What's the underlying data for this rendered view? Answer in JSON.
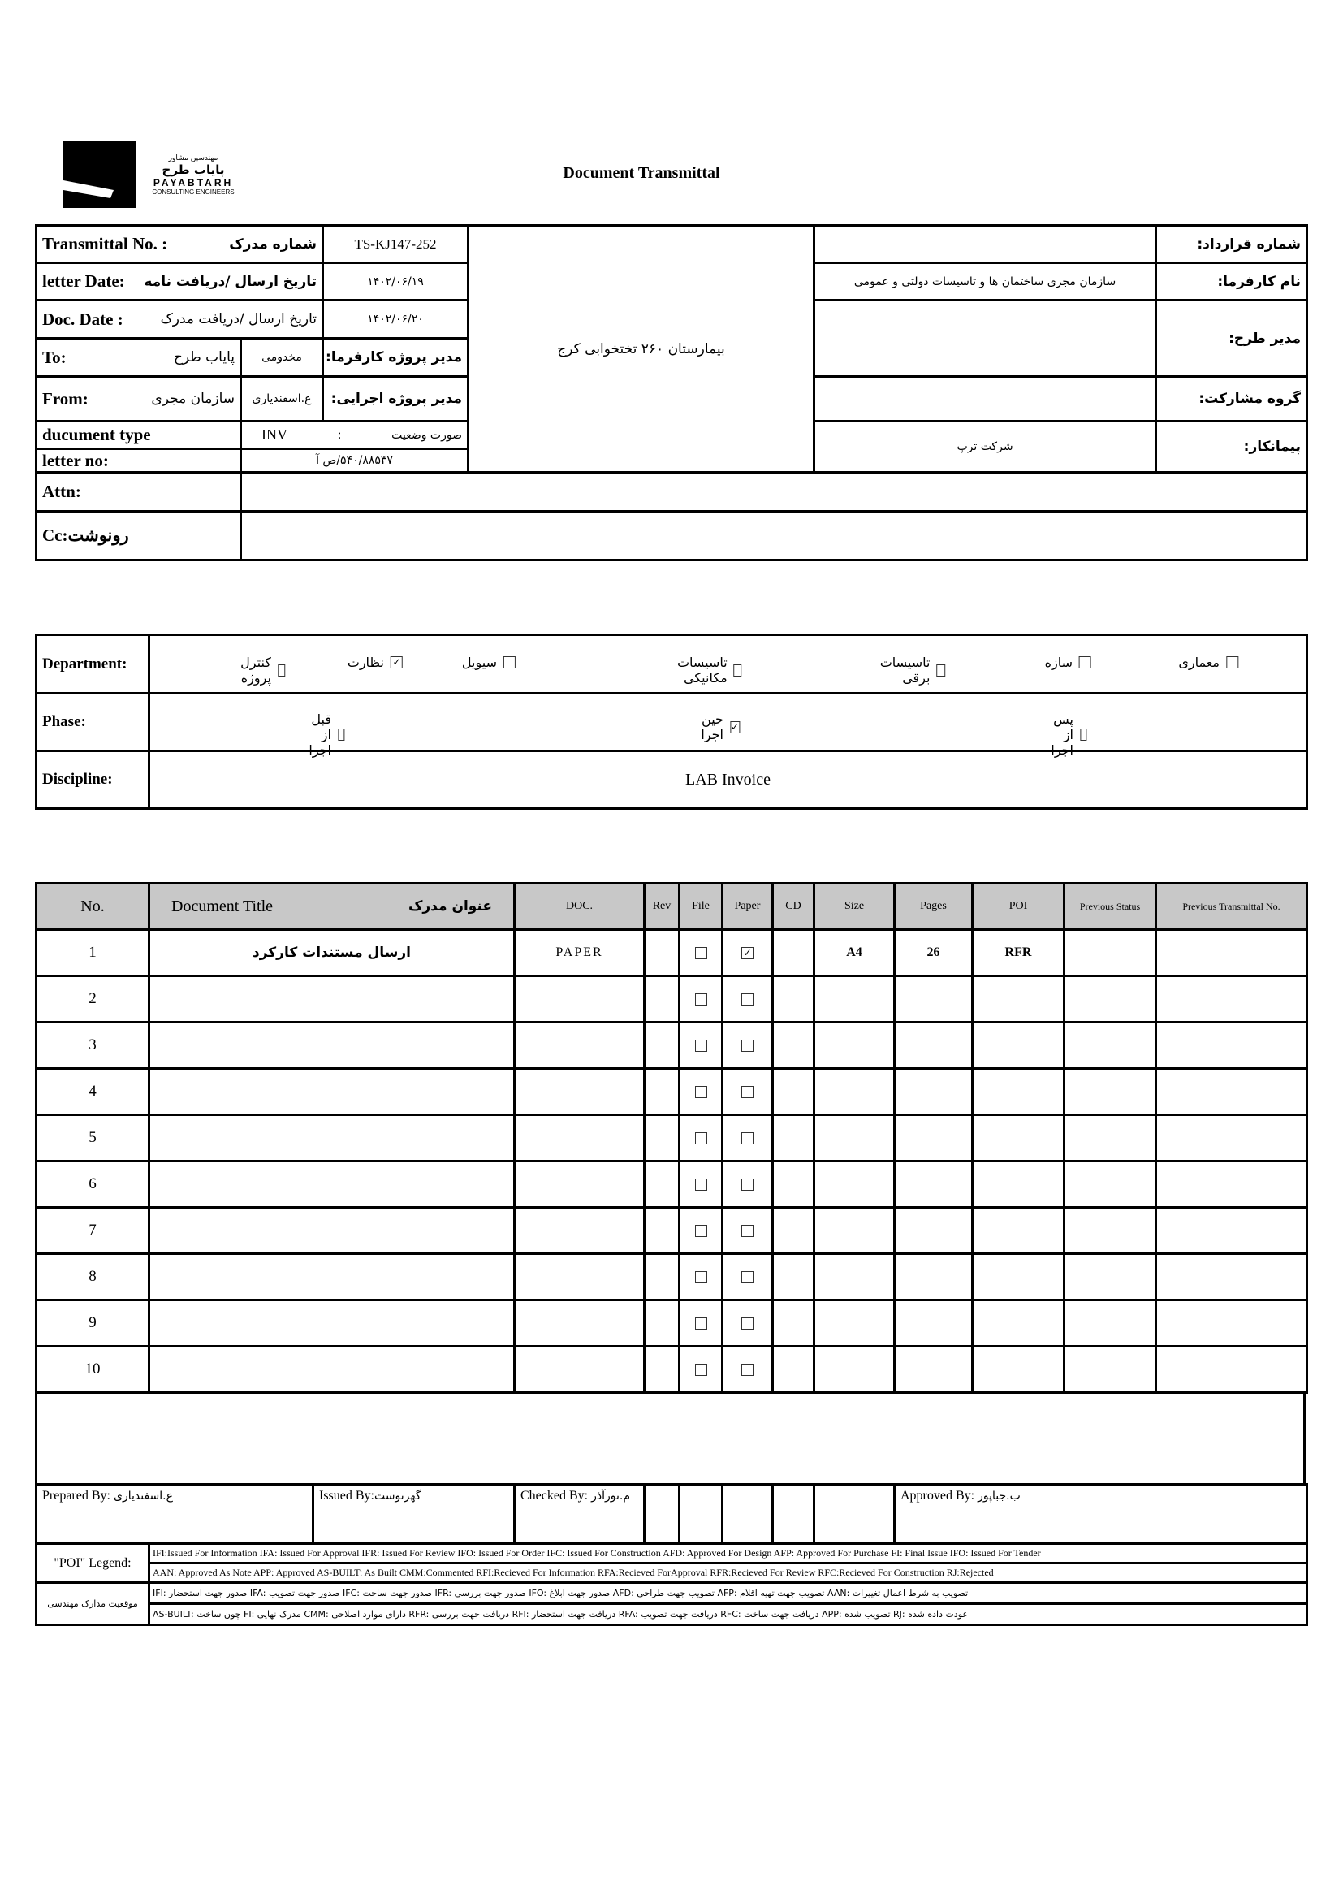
{
  "logo": {
    "company_fa_small": "مهندسین مشاور",
    "company_fa": "پایاب طرح",
    "company_en": "PAYABTARH",
    "tagline": "CONSULTING ENGINEERS"
  },
  "title": "Document Transmittal",
  "header": {
    "transmittal_no": {
      "label_en": "Transmittal No. :",
      "label_fa": "شماره مدرک",
      "value": "TS-KJ147-252"
    },
    "letter_date": {
      "label_en": "letter Date:",
      "label_fa": "تاریخ ارسال /دریافت نامه",
      "value": "۱۴۰۲/۰۶/۱۹"
    },
    "doc_date": {
      "label_en": "Doc. Date :",
      "label_fa": "تاریخ ارسال /دریافت مدرک",
      "value": "۱۴۰۲/۰۶/۲۰"
    },
    "to": {
      "label": "To:",
      "value": "پایاب طرح",
      "person": "مخدومی",
      "person_label": "مدیر پروژه کارفرما:"
    },
    "from": {
      "label": "From:",
      "value": "سازمان مجری",
      "person": "ع.اسفندیاری",
      "person_label": "مدیر پروژه اجرایی:"
    },
    "document_type": {
      "label": "ducument type",
      "code": "INV",
      "sep": ":",
      "value_fa": "صورت وضعیت"
    },
    "letter_no": {
      "label": "letter no:",
      "value": "۵۴۰/۸۸۵۳۷/ص آ"
    },
    "attn": {
      "label": "Attn:",
      "value": ""
    },
    "cc": {
      "label": "Cc:رونوشت",
      "value": ""
    },
    "project": "بیمارستان ۲۶۰ تختخوابی کرج",
    "contract_no": {
      "label": "شماره قرارداد:",
      "value": ""
    },
    "employer": {
      "label": "نام کارفرما:",
      "value": "سازمان مجری ساختمان ها و تاسیسات دولتی و عمومی"
    },
    "plan_manager": {
      "label": "مدیر طرح:",
      "value": ""
    },
    "partnership": {
      "label": "گروه مشارکت:",
      "value": ""
    },
    "contractor": {
      "label": "پیمانکار:",
      "value": "شرکت ترپ"
    }
  },
  "department": {
    "label": "Department:",
    "items": [
      {
        "label": "معماری",
        "checked": false
      },
      {
        "label": "سازه",
        "checked": false
      },
      {
        "label": "تاسیسات برقی",
        "checked": false
      },
      {
        "label": "تاسیسات مکانیکی",
        "checked": false
      },
      {
        "label": "سیویل",
        "checked": false
      },
      {
        "label": "نظارت",
        "checked": true
      },
      {
        "label": "کنترل پروژه",
        "checked": false
      }
    ]
  },
  "phase": {
    "label": "Phase:",
    "items": [
      {
        "label": "پس از اجرا",
        "checked": false
      },
      {
        "label": "حین اجرا",
        "checked": true
      },
      {
        "label": "قبل از اجرا",
        "checked": false
      }
    ]
  },
  "discipline": {
    "label": "Discipline:",
    "value": "LAB Invoice"
  },
  "documents": {
    "columns": {
      "no": "No.",
      "title_en": "Document Title",
      "title_fa": "عنوان مدرک",
      "doc": "DOC.",
      "rev": "Rev",
      "file": "File",
      "paper": "Paper",
      "cd": "CD",
      "size": "Size",
      "pages": "Pages",
      "poi": "POI",
      "prev_status": "Previous Status",
      "prev_transmittal": "Previous Transmittal No."
    },
    "rows": [
      {
        "no": "1",
        "title": "ارسال مستندات کارکرد",
        "doc": "PAPER",
        "rev": "",
        "file": false,
        "paper": true,
        "cd": "",
        "size": "A4",
        "pages": "26",
        "poi": "RFR",
        "prev_status": "",
        "prev_transmittal": ""
      },
      {
        "no": "2",
        "file": false,
        "paper": false
      },
      {
        "no": "3",
        "file": false,
        "paper": false
      },
      {
        "no": "4",
        "file": false,
        "paper": false
      },
      {
        "no": "5",
        "file": false,
        "paper": false
      },
      {
        "no": "6",
        "file": false,
        "paper": false
      },
      {
        "no": "7",
        "file": false,
        "paper": false
      },
      {
        "no": "8",
        "file": false,
        "paper": false
      },
      {
        "no": "9",
        "file": false,
        "paper": false
      },
      {
        "no": "10",
        "file": false,
        "paper": false
      }
    ]
  },
  "signatures": {
    "prepared": {
      "label": "Prepared By:",
      "name": "ع.اسفندیاری"
    },
    "issued": {
      "label": "Issued By:",
      "name": "گهرنوست"
    },
    "checked": {
      "label": "Checked By:",
      "name": "م.نورآذر"
    },
    "approved": {
      "label": "Approved By:",
      "name": "ب.جباپور"
    }
  },
  "legend": {
    "poi_label": "\"POI\" Legend:",
    "fa_label": "موقعیت مدارک مهندسی",
    "line1": "IFI:Issued For Information  IFA: Issued For Approval  IFR: Issued For Review   IFO: Issued For Order  IFC: Issued For Construction AFD: Approved For Design AFP: Approved For Purchase  FI: Final Issue  IFO: Issued For Tender",
    "line2": "AAN: Approved As Note  APP: Approved  AS-BUILT: As Built CMM:Commented  RFI:Recieved For Information   RFA:Recieved ForApproval   RFR:Recieved For Review   RFC:Recieved For Construction  RJ:Rejected",
    "line3": "IFI: صدور جهت استحضار   IFA: صدور جهت تصویب   IFC: صدور جهت ساخت   IFR: صدور جهت بررسی   IFO: صدور جهت ابلاغ   AFD: تصویب جهت طراحی   AFP: تصویب جهت تهیه اقلام   AAN: تصویب به شرط اعمال تغییرات",
    "line4": "AS-BUILT: چون ساخت   FI: مدرک نهایی   CMM: دارای موارد اصلاحی   RFR: دریافت جهت بررسی   RFI: دریافت جهت استحضار   RFA: دریافت جهت تصویب   RFC: دریافت جهت ساخت   APP: تصویب شده   RJ: عودت داده شده"
  }
}
